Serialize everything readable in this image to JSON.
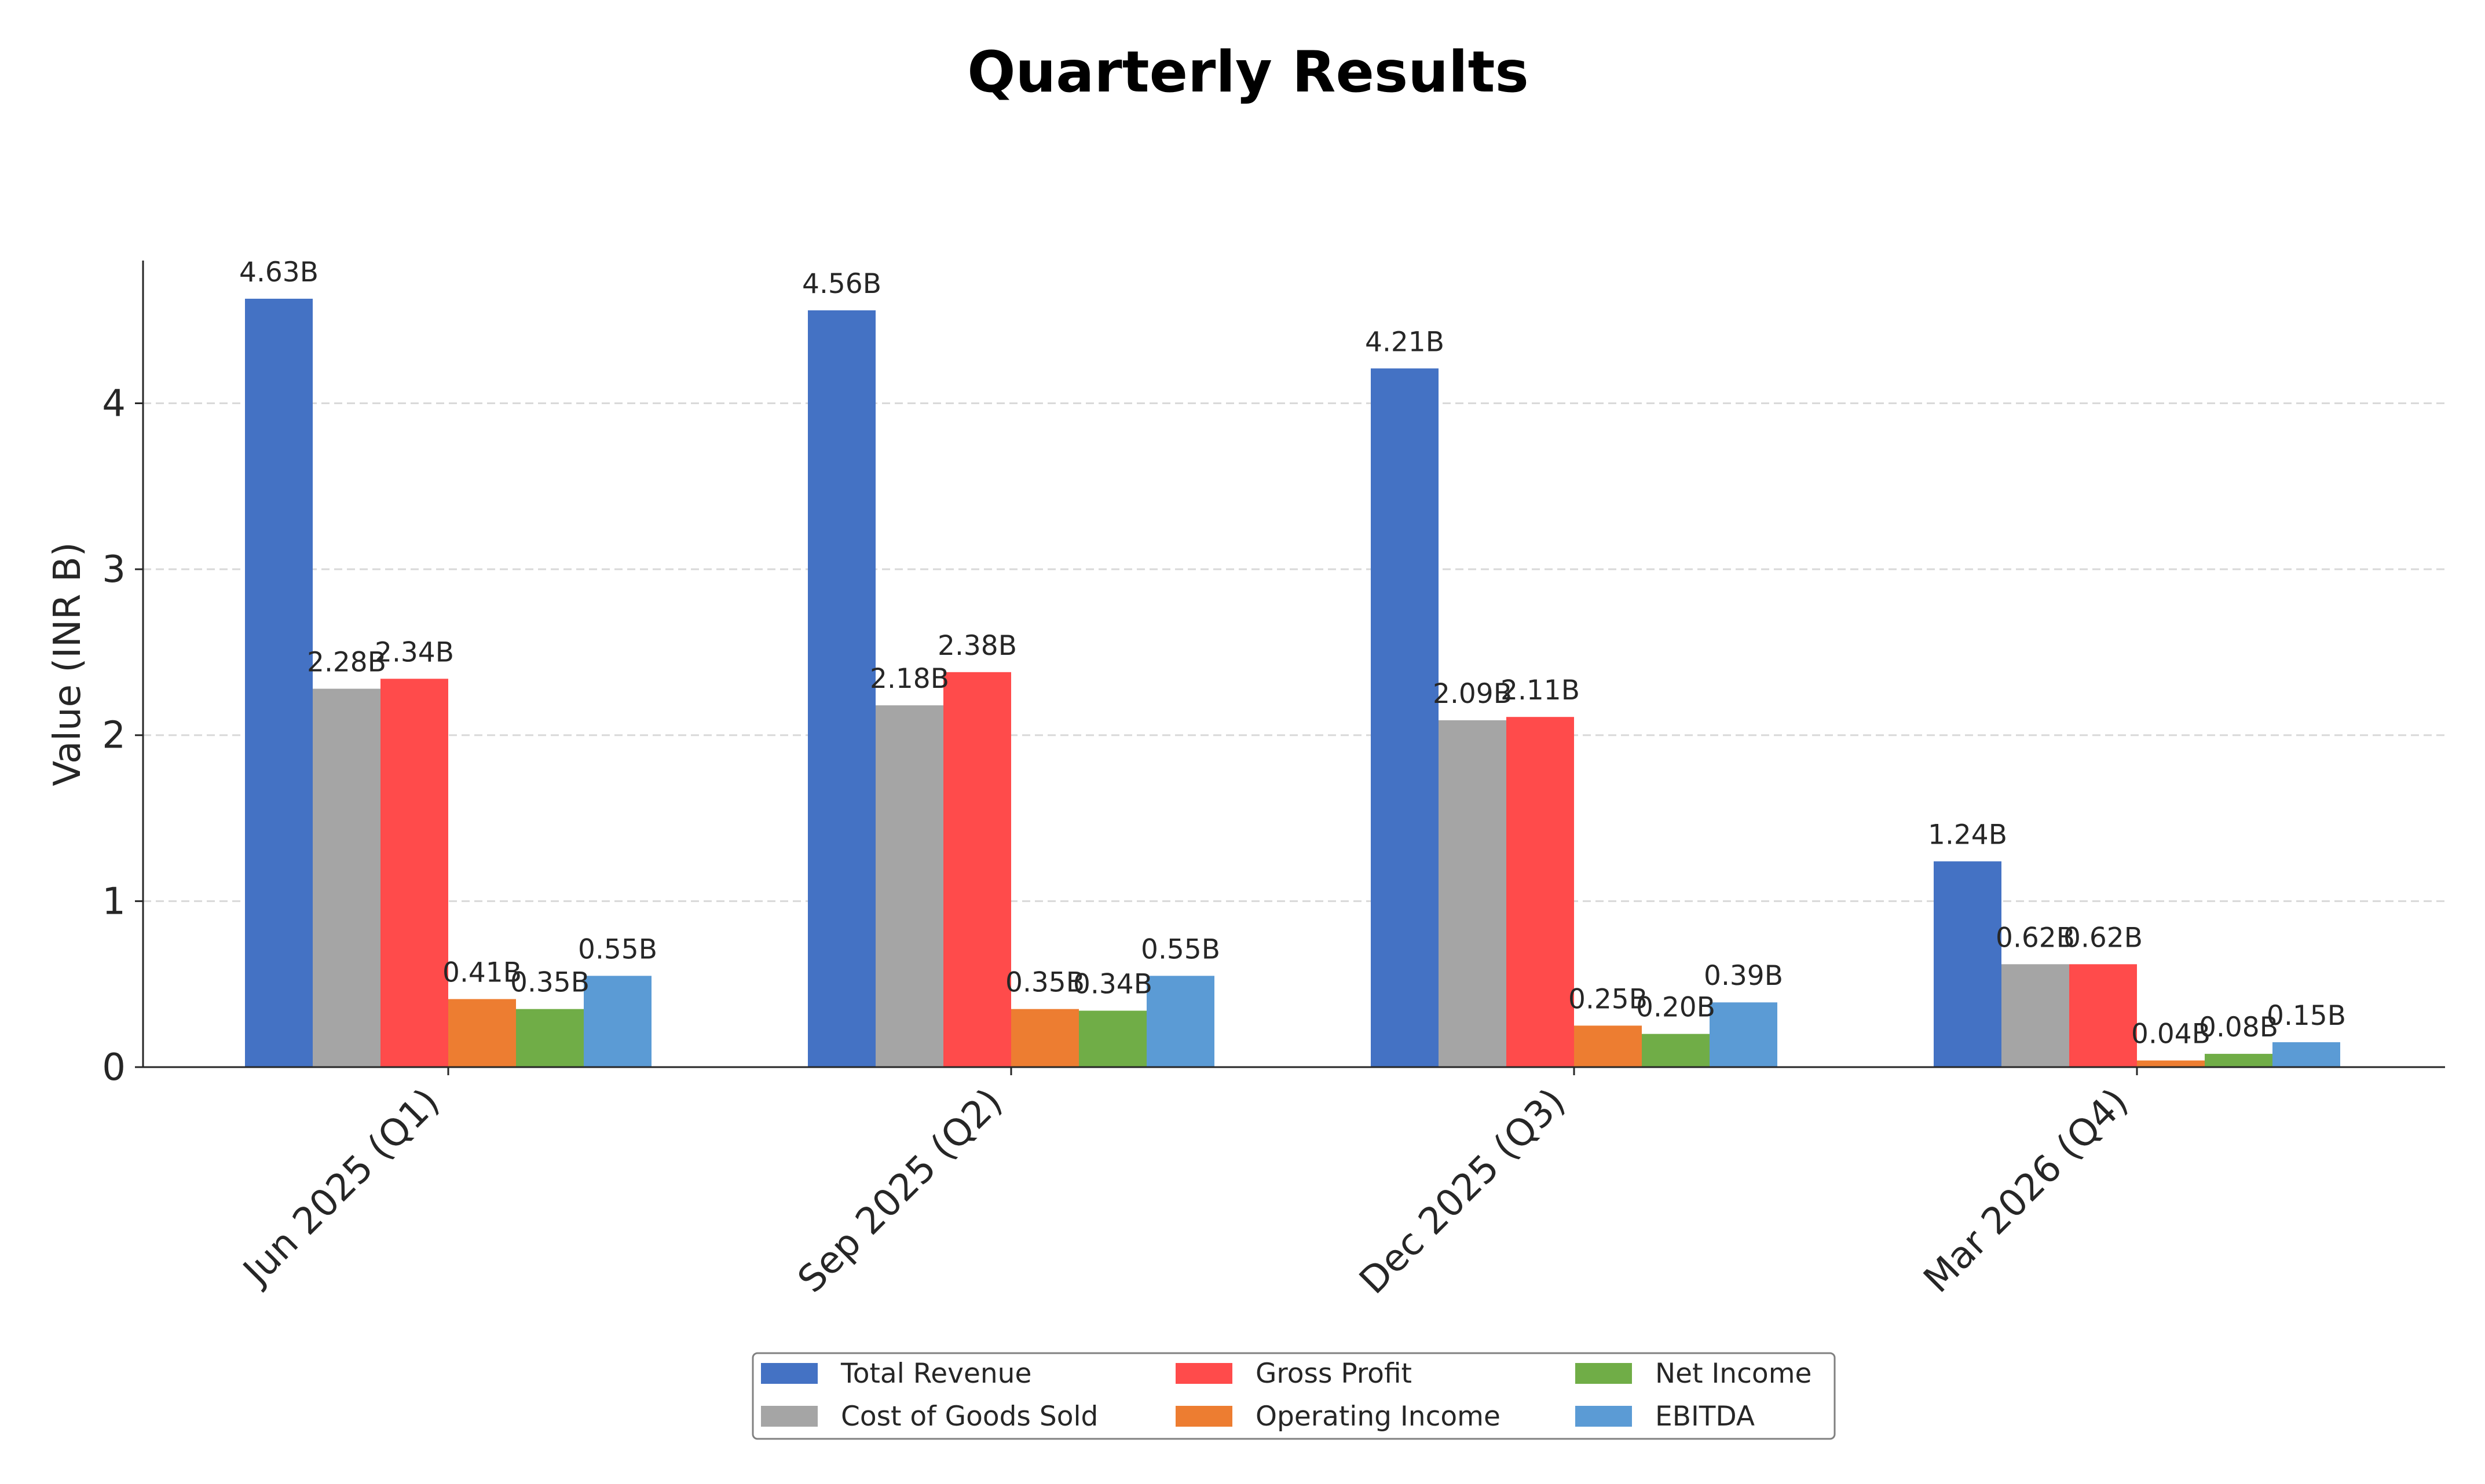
{
  "chart_data": {
    "type": "bar",
    "title": "Quarterly Results",
    "xlabel": "",
    "ylabel": "Value (INR B)",
    "ylim": [
      0,
      4.86
    ],
    "yticks": [
      "0",
      "1",
      "2",
      "3",
      "4"
    ],
    "grid": "horizontal dashed",
    "legend_position": "bottom-center",
    "categories": [
      "Jun 2025 (Q1)",
      "Sep 2025 (Q2)",
      "Dec 2025 (Q3)",
      "Mar 2026 (Q4)"
    ],
    "series": [
      {
        "name": "Total Revenue",
        "color": "#4472c4",
        "values": [
          4.63,
          4.56,
          4.21,
          1.24
        ],
        "labels": [
          "4.63B",
          "4.56B",
          "4.21B",
          "1.24B"
        ]
      },
      {
        "name": "Cost of Goods Sold",
        "color": "#a5a5a5",
        "values": [
          2.28,
          2.18,
          2.09,
          0.62
        ],
        "labels": [
          "2.28B",
          "2.18B",
          "2.09B",
          "0.62B"
        ]
      },
      {
        "name": "Gross Profit",
        "color": "#ff4b4b",
        "values": [
          2.34,
          2.38,
          2.11,
          0.62
        ],
        "labels": [
          "2.34B",
          "2.38B",
          "2.11B",
          "0.62B"
        ]
      },
      {
        "name": "Operating Income",
        "color": "#ed7d31",
        "values": [
          0.41,
          0.35,
          0.25,
          0.04
        ],
        "labels": [
          "0.41B",
          "0.35B",
          "0.25B",
          "0.04B"
        ]
      },
      {
        "name": "Net Income",
        "color": "#70ad47",
        "values": [
          0.35,
          0.34,
          0.2,
          0.08
        ],
        "labels": [
          "0.35B",
          "0.34B",
          "0.20B",
          "0.08B"
        ]
      },
      {
        "name": "EBITDA",
        "color": "#5b9bd5",
        "values": [
          0.55,
          0.55,
          0.39,
          0.15
        ],
        "labels": [
          "0.55B",
          "0.55B",
          "0.39B",
          "0.15B"
        ]
      }
    ]
  }
}
